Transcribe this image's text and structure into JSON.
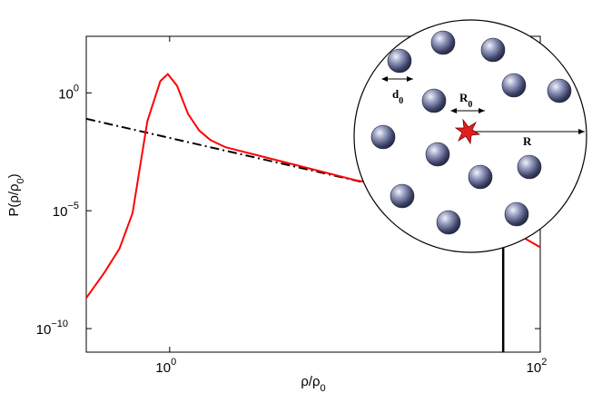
{
  "chart_data": {
    "type": "line",
    "title": "",
    "xlabel": "ρ/ρ",
    "xlabel_sub": "0",
    "ylabel": "P(ρ/ρ",
    "ylabel_sub": "0",
    "ylabel_close": ")",
    "xscale": "log",
    "yscale": "log",
    "xlim_log10": [
      -0.45,
      2.0
    ],
    "ylim_log10": [
      -11.0,
      2.4
    ],
    "x_ticks": [
      {
        "log10": 0,
        "base": "10",
        "exp": "0"
      },
      {
        "log10": 2,
        "base": "10",
        "exp": "2"
      }
    ],
    "y_ticks": [
      {
        "log10": 0,
        "base": "10",
        "exp": "0"
      },
      {
        "log10": -5,
        "base": "10",
        "exp": "−5"
      },
      {
        "log10": -10,
        "base": "10",
        "exp": "−10"
      }
    ],
    "series": [
      {
        "style": "solid",
        "color": "#ff0000",
        "log10_x": [
          -0.45,
          -0.35,
          -0.27,
          -0.2,
          -0.12,
          -0.05,
          -0.01,
          0.04,
          0.1,
          0.16,
          0.22,
          0.3,
          0.45,
          0.6,
          0.8,
          1.0,
          1.2,
          1.4,
          1.6,
          1.7,
          1.78,
          1.82,
          1.9,
          2.0,
          2.2,
          2.4,
          2.55,
          2.7,
          2.8,
          2.88,
          2.95
        ],
        "log10_y": [
          -8.7,
          -7.6,
          -6.6,
          -5.1,
          -1.2,
          0.5,
          0.8,
          0.3,
          -0.9,
          -1.6,
          -2.0,
          -2.3,
          -2.6,
          -2.9,
          -3.3,
          -3.7,
          -4.0,
          -4.3,
          -4.65,
          -4.9,
          -5.1,
          -5.4,
          -6.1,
          -6.55,
          -7.0,
          -7.4,
          -7.8,
          -8.3,
          -9.1,
          -9.7,
          -10.0
        ]
      },
      {
        "style": "dashdot",
        "color": "#000000",
        "log10_x": [
          -0.45,
          3.8
        ],
        "log10_y": [
          -1.1,
          -8.75
        ]
      }
    ],
    "vline_log10_x": 1.8,
    "inset": {
      "labels": {
        "d0": "d",
        "d0_sub": "0",
        "R0": "R",
        "R0_sub": "0",
        "R": "R"
      },
      "sphere_color": "#4c5478",
      "source_color": "#e02020"
    }
  }
}
